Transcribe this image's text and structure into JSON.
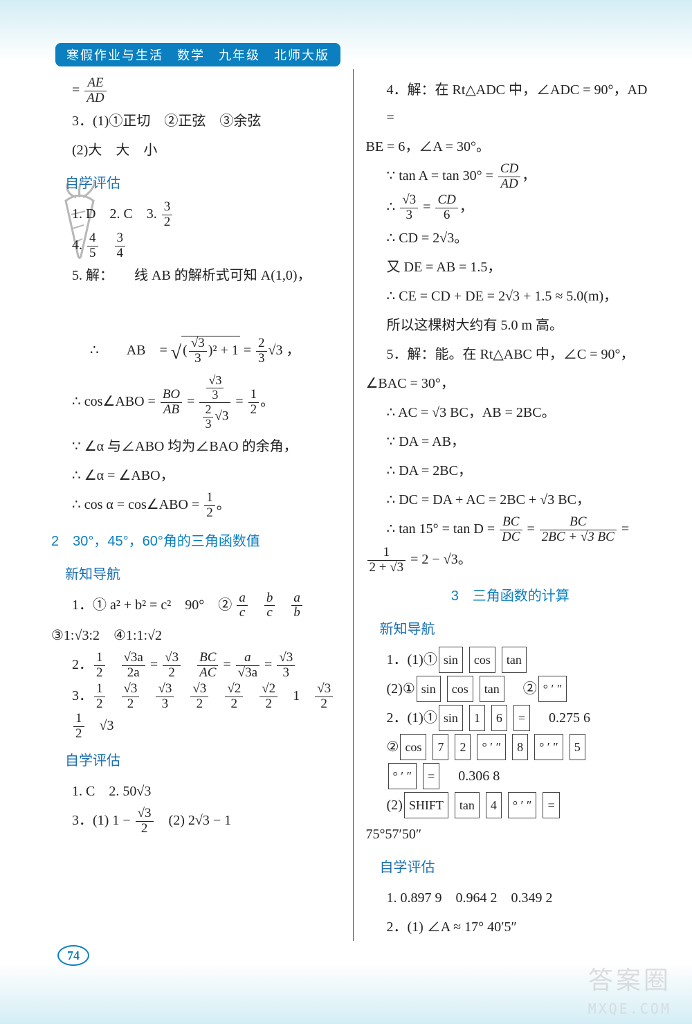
{
  "header": "寒假作业与生活　数学　九年级　北师大版",
  "pageNumber": "74",
  "watermark1": "答案圈",
  "watermark2": "MXQE.COM",
  "left": {
    "l1_frac_num": "AE",
    "l1_frac_den": "AD",
    "l2": "3．(1)①正切　②正弦　③余弦",
    "l3": "(2)大　大　小",
    "sub1": "自学评估",
    "l4a": "1. D　2. C　3. ",
    "l4f_num": "3",
    "l4f_den": "2",
    "l5a": "4. ",
    "l5f1n": "4",
    "l5f1d": "5",
    "l5f2n": "3",
    "l5f2d": "4",
    "l6": "5. 解：　　线 AB 的解析式可知 A(1,0)，",
    "l7a": "∴ ",
    "l7b": " AB = ",
    "l7sq_inner": "(√3/3)² + 1",
    "l7c": " = ",
    "l7rn": "2",
    "l7rd": "3",
    "l7r2": "√3 ，",
    "l8a": "∴ cos∠ABO = ",
    "l8f1n": "BO",
    "l8f1d": "AB",
    "l8eq": " = ",
    "l8f2n": "√3/3",
    "l8f2d": "(2/3)√3",
    "l8eq2": " = ",
    "l8f3n": "1",
    "l8f3d": "2",
    "l8end": "。",
    "l9": "∵ ∠α 与∠ABO 均为∠BAO 的余角，",
    "l10": "∴ ∠α = ∠ABO，",
    "l11a": "∴ cos α = cos∠ABO = ",
    "l11n": "1",
    "l11d": "2",
    "l11b": "。",
    "title2": "2　30°，45°，60°角的三角函数值",
    "sub2": "新知导航",
    "n1a": "1．① a² + b² = c²　90°　② ",
    "n1f1n": "a",
    "n1f1d": "c",
    "n1f2n": "b",
    "n1f2d": "c",
    "n1f3n": "a",
    "n1f3d": "b",
    "n2": "③1:√3:2　④1:1:√2",
    "n3a": "2．",
    "n3f1n": "1",
    "n3f1d": "2",
    "n3f2n": "√3a",
    "n3f2d": "2a",
    "n3eq": " = ",
    "n3f3n": "√3",
    "n3f3d": "2",
    "n3b": "　",
    "n3f4n": "BC",
    "n3f4d": "AC",
    "n3eq2": " = ",
    "n3f5n": "a",
    "n3f5d": "√3a",
    "n3eq3": " = ",
    "n3f6n": "√3",
    "n3f6d": "3",
    "n4a": "3．",
    "n4_items": [
      "1/2",
      "√3/2",
      "√3/3",
      "√3/2",
      "√2/2",
      "√2/2",
      "1",
      "√3/2",
      "1/2",
      "√3"
    ],
    "sub3": "自学评估",
    "e1": "1. C　2. 50√3",
    "e2a": "3．(1) 1 − ",
    "e2n": "√3",
    "e2d": "2",
    "e2b": "　(2) 2√3 − 1"
  },
  "right": {
    "r1": "4．解：在 Rt△ADC 中，∠ADC = 90°，AD =",
    "r2": "BE = 6，∠A = 30°。",
    "r3a": "∵ tan A = tan 30° = ",
    "r3n": "CD",
    "r3d": "AD",
    "r3b": "，",
    "r4a": "∴ ",
    "r4n1": "√3",
    "r4d1": "3",
    "r4eq": " = ",
    "r4n2": "CD",
    "r4d2": "6",
    "r4b": "，",
    "r5": "∴ CD = 2√3。",
    "r6": "又 DE = AB = 1.5，",
    "r7": "∴ CE = CD + DE = 2√3 + 1.5 ≈ 5.0(m)，",
    "r8": "所以这棵树大约有 5.0 m 高。",
    "r9": "5．解：能。在 Rt△ABC 中，∠C = 90°，",
    "r10": "∠BAC = 30°，",
    "r11": "∴ AC = √3 BC，AB = 2BC。",
    "r12": "∵ DA = AB，",
    "r13": "∴ DA = 2BC，",
    "r14": "∴ DC = DA + AC = 2BC + √3 BC，",
    "r15a": "∴ tan 15° = tan D = ",
    "r15n1": "BC",
    "r15d1": "DC",
    "r15eq": " = ",
    "r15n2": "BC",
    "r15d2": "2BC + √3 BC",
    "r15b": " =",
    "r16a": "",
    "r16n": "1",
    "r16d": "2 + √3",
    "r16b": " = 2 − √3。",
    "title3": "3　三角函数的计算",
    "sub4": "新知导航",
    "k1a": "1．(1)①",
    "k1": [
      "sin",
      "cos",
      "tan"
    ],
    "k2a": "(2)①",
    "k2": [
      "sin",
      "cos",
      "tan"
    ],
    "k2b": "　②",
    "k2c": [
      "° ′ ″"
    ],
    "k3a": "2．(1)①",
    "k3": [
      "sin",
      "1",
      "6",
      "="
    ],
    "k3b": "　0.275 6",
    "k4a": "②",
    "k4": [
      "cos",
      "7",
      "2",
      "° ′ ″",
      "8",
      "° ′ ″",
      "5"
    ],
    "k5": [
      "° ′ ″",
      "="
    ],
    "k5b": "　0.306 8",
    "k6a": "(2)",
    "k6": [
      "SHIFT",
      "tan",
      "4",
      "° ′ ″",
      "="
    ],
    "k7": "75°57′50″",
    "sub5": "自学评估",
    "e3": "1. 0.897 9　0.964 2　0.349 2",
    "e4": "2．(1) ∠A ≈ 17° 40′5″"
  }
}
